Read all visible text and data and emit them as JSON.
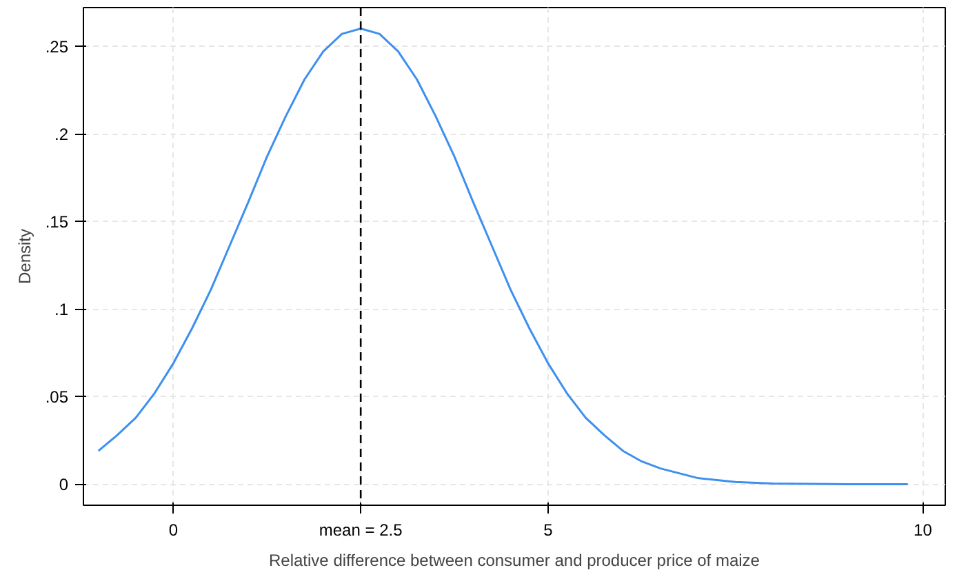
{
  "chart_data": {
    "type": "line",
    "xlabel": "Relative difference between consumer and producer price of maize",
    "ylabel": "Density",
    "x": [
      -1,
      -0.75,
      -0.5,
      -0.25,
      0,
      0.25,
      0.5,
      0.75,
      1,
      1.25,
      1.5,
      1.75,
      2,
      2.25,
      2.5,
      2.75,
      3,
      3.25,
      3.5,
      3.75,
      4,
      4.25,
      4.5,
      4.75,
      5,
      5.25,
      5.5,
      5.75,
      6,
      6.25,
      6.5,
      7,
      7.5,
      8,
      9,
      9.8
    ],
    "series": [
      {
        "color": "#3d8ff0",
        "values": [
          0.019,
          0.028,
          0.038,
          0.052,
          0.069,
          0.089,
          0.111,
          0.136,
          0.161,
          0.187,
          0.21,
          0.231,
          0.247,
          0.257,
          0.26,
          0.257,
          0.247,
          0.231,
          0.21,
          0.187,
          0.161,
          0.136,
          0.111,
          0.089,
          0.069,
          0.052,
          0.038,
          0.028,
          0.019,
          0.013,
          0.009,
          0.0035,
          0.0013,
          0.0004,
          0,
          0
        ]
      }
    ],
    "xlim": [
      -1.2,
      10.3
    ],
    "ylim": [
      -0.012,
      0.272
    ],
    "xticks": [
      0,
      {
        "value": 2.5,
        "label": "mean = 2.5"
      },
      5,
      10
    ],
    "yticks": [
      {
        "value": 0,
        "label": "0"
      },
      {
        "value": 0.05,
        "label": ".05"
      },
      {
        "value": 0.1,
        "label": ".1"
      },
      {
        "value": 0.15,
        "label": ".15"
      },
      {
        "value": 0.2,
        "label": ".2"
      },
      {
        "value": 0.25,
        "label": ".25"
      }
    ],
    "ref_lines": [
      {
        "axis": "x",
        "value": 2.5,
        "color": "#000000",
        "line_style": "dashed"
      }
    ],
    "grid": true,
    "line_style": "solid",
    "marker": "none"
  }
}
